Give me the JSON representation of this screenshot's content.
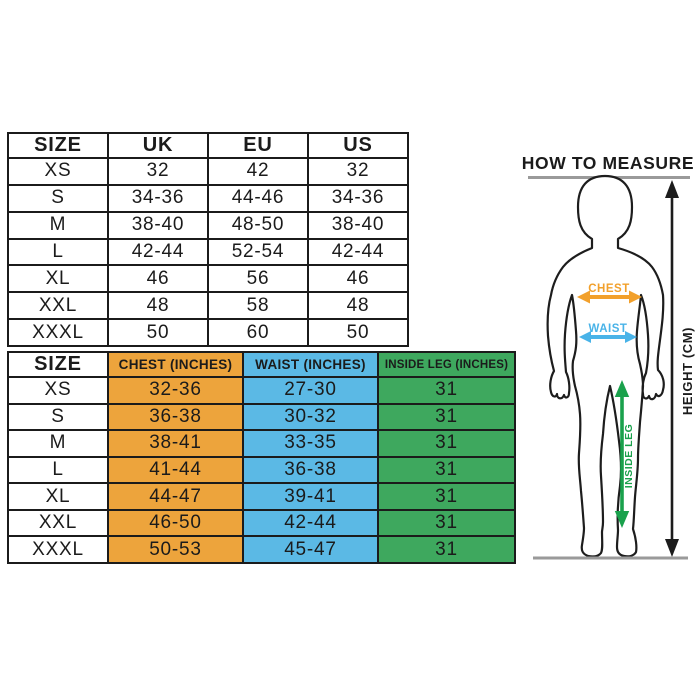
{
  "page": {
    "background_color": "#ffffff"
  },
  "size_conversion_table": {
    "headers": [
      "SIZE",
      "UK",
      "EU",
      "US"
    ],
    "rows": [
      [
        "XS",
        "32",
        "42",
        "32"
      ],
      [
        "S",
        "34-36",
        "44-46",
        "34-36"
      ],
      [
        "M",
        "38-40",
        "48-50",
        "38-40"
      ],
      [
        "L",
        "42-44",
        "52-54",
        "42-44"
      ],
      [
        "XL",
        "46",
        "56",
        "46"
      ],
      [
        "XXL",
        "48",
        "58",
        "48"
      ],
      [
        "XXXL",
        "50",
        "60",
        "50"
      ]
    ]
  },
  "measurements_table": {
    "headers": [
      "SIZE",
      "CHEST (INCHES)",
      "WAIST (INCHES)",
      "INSIDE LEG (INCHES)"
    ],
    "column_colors": {
      "chest": "#EDA43C",
      "waist": "#5BB9E5",
      "inside_leg": "#3EA85E"
    },
    "rows": [
      [
        "XS",
        "32-36",
        "27-30",
        "31"
      ],
      [
        "S",
        "36-38",
        "30-32",
        "31"
      ],
      [
        "M",
        "38-41",
        "33-35",
        "31"
      ],
      [
        "L",
        "41-44",
        "36-38",
        "31"
      ],
      [
        "XL",
        "44-47",
        "39-41",
        "31"
      ],
      [
        "XXL",
        "46-50",
        "42-44",
        "31"
      ],
      [
        "XXXL",
        "50-53",
        "45-47",
        "31"
      ]
    ]
  },
  "measure_guide": {
    "title": "HOW TO MEASURE",
    "chest_label": "CHEST",
    "waist_label": "WAIST",
    "inside_leg_label": "INSIDE LEG",
    "height_label": "HEIGHT (CM)",
    "colors": {
      "chest": "#F2A02B",
      "waist": "#49B3E8",
      "inside_leg": "#1AA14C",
      "height": "#1C1C1C",
      "rule": "#9A9A9A"
    }
  }
}
